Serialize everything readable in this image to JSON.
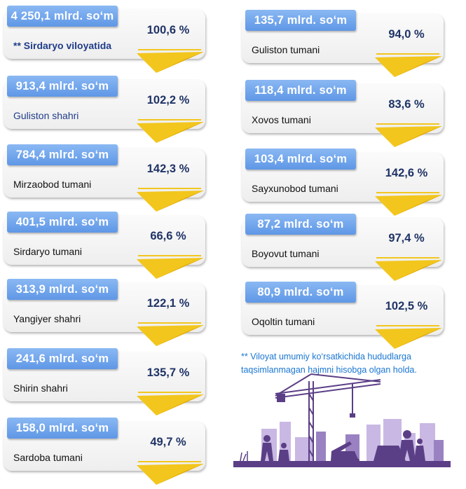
{
  "cards_left": [
    {
      "value": "4 250,1 mlrd. so‘m",
      "name": "** Sirdaryo viloyatida",
      "percent": "100,6 %"
    },
    {
      "value": "913,4 mlrd. so‘m",
      "name": "Guliston shahri",
      "percent": "102,2 %"
    },
    {
      "value": "784,4 mlrd. so‘m",
      "name": "Mirzaobod tumani",
      "percent": "142,3 %"
    },
    {
      "value": "401,5 mlrd. so‘m",
      "name": "Sirdaryo tumani",
      "percent": "66,6 %"
    },
    {
      "value": "313,9 mlrd. so‘m",
      "name": "Yangiyer shahri",
      "percent": "122,1 %"
    },
    {
      "value": "241,6 mlrd. so‘m",
      "name": "Shirin shahri",
      "percent": "135,7 %"
    },
    {
      "value": "158,0 mlrd. so‘m",
      "name": "Sardoba tumani",
      "percent": "49,7 %"
    }
  ],
  "cards_right": [
    {
      "value": "135,7 mlrd. so‘m",
      "name": "Guliston tumani",
      "percent": "94,0 %"
    },
    {
      "value": "118,4 mlrd. so‘m",
      "name": "Xovos tumani",
      "percent": "83,6 %"
    },
    {
      "value": "103,4 mlrd. so‘m",
      "name": "Sayxunobod tumani",
      "percent": "142,6 %"
    },
    {
      "value": "87,2 mlrd. so‘m",
      "name": "Boyovut tumani",
      "percent": "97,4 %"
    },
    {
      "value": "80,9 mlrd. so‘m",
      "name": "Oqoltin tumani",
      "percent": "102,5 %"
    }
  ],
  "footnote": "** Viloyat umumiy ko‘rsatkichida hududlarga taqsimlanmagan hajmni hisobga olgan holda.",
  "colors": {
    "value_box": "#6fa4ea",
    "percent_text": "#1f3366",
    "ribbon": "#f2c61d",
    "footnote_text": "#1976d2",
    "silhouette": "#5b3f86"
  },
  "illustration": "construction-silhouette-with-crane"
}
